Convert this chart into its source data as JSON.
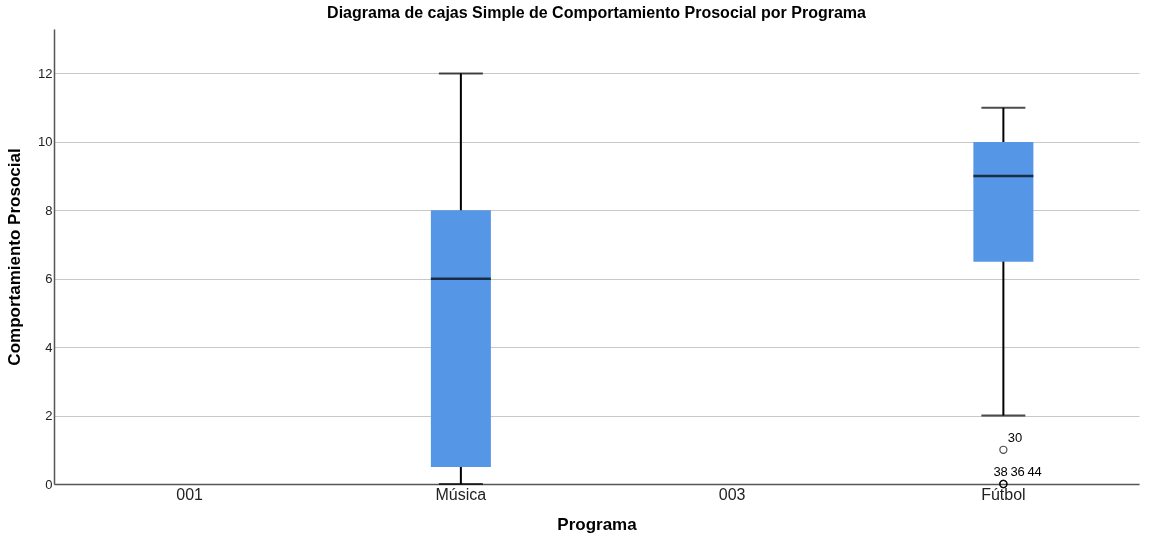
{
  "chart_data": {
    "type": "box",
    "title": "Diagrama de cajas Simple de Comportamiento Prosocial por Programa",
    "xlabel": "Programa",
    "ylabel": "Comportamiento Prosocial",
    "categories": [
      "001",
      "Música",
      "003",
      "Fútbol"
    ],
    "boxes": [
      null,
      {
        "low": 0,
        "q1": 0.5,
        "median": 6,
        "q3": 8,
        "high": 12
      },
      null,
      {
        "low": 2,
        "q1": 6.5,
        "median": 9,
        "q3": 10,
        "high": 11,
        "outliers": [
          1,
          0,
          0,
          0
        ]
      }
    ],
    "color": "#5596e6",
    "ylim": [
      0,
      13.3
    ],
    "yticks": [
      0,
      2,
      4,
      6,
      8,
      10,
      12
    ],
    "grid": "y",
    "annotations": [
      "30",
      "38",
      "36",
      "44"
    ]
  }
}
